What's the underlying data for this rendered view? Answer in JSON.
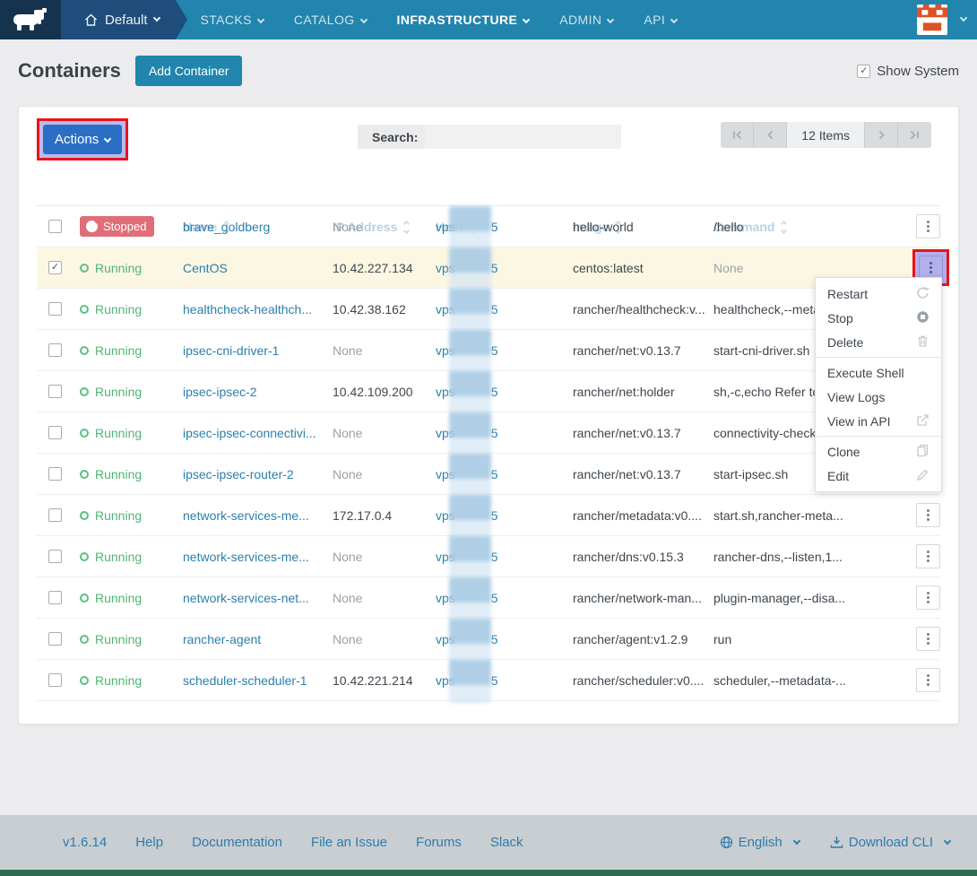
{
  "nav": {
    "environment": {
      "label": "Default"
    },
    "items": [
      {
        "label": "STACKS"
      },
      {
        "label": "CATALOG"
      },
      {
        "label": "INFRASTRUCTURE",
        "active": true
      },
      {
        "label": "ADMIN"
      },
      {
        "label": "API"
      }
    ]
  },
  "page": {
    "title": "Containers",
    "add_button_label": "Add Container",
    "show_system_label": "Show System",
    "show_system_checked": true
  },
  "toolbar": {
    "actions_label": "Actions",
    "search_label": "Search:",
    "search_value": "",
    "pagination": {
      "items_label": "12 Items"
    }
  },
  "table": {
    "columns": [
      {
        "label": "State"
      },
      {
        "label": "Name"
      },
      {
        "label": "IP Address"
      },
      {
        "label": "Host"
      },
      {
        "label": "Image"
      },
      {
        "label": "Command"
      }
    ],
    "host_prefix": "vps",
    "host_suffix": "5",
    "rows": [
      {
        "state": "Stopped",
        "state_type": "stopped",
        "checked": false,
        "name": "brave_goldberg",
        "ip": "None",
        "image": "hello-world",
        "command": "/hello"
      },
      {
        "state": "Running",
        "state_type": "running",
        "checked": true,
        "selected": true,
        "menu_highlight": true,
        "name": "CentOS",
        "ip": "10.42.227.134",
        "image": "centos:latest",
        "command": "None"
      },
      {
        "state": "Running",
        "state_type": "running",
        "checked": false,
        "name": "healthcheck-healthch...",
        "ip": "10.42.38.162",
        "image": "rancher/healthcheck:v...",
        "command": "healthcheck,--meta"
      },
      {
        "state": "Running",
        "state_type": "running",
        "checked": false,
        "name": "ipsec-cni-driver-1",
        "ip": "None",
        "image": "rancher/net:v0.13.7",
        "command": "start-cni-driver.sh"
      },
      {
        "state": "Running",
        "state_type": "running",
        "checked": false,
        "name": "ipsec-ipsec-2",
        "ip": "10.42.109.200",
        "image": "rancher/net:holder",
        "command": "sh,-c,echo Refer to"
      },
      {
        "state": "Running",
        "state_type": "running",
        "checked": false,
        "name": "ipsec-ipsec-connectivi...",
        "ip": "None",
        "image": "rancher/net:v0.13.7",
        "command": "connectivity-check"
      },
      {
        "state": "Running",
        "state_type": "running",
        "checked": false,
        "name": "ipsec-ipsec-router-2",
        "ip": "None",
        "image": "rancher/net:v0.13.7",
        "command": "start-ipsec.sh"
      },
      {
        "state": "Running",
        "state_type": "running",
        "checked": false,
        "name": "network-services-me...",
        "ip": "172.17.0.4",
        "image": "rancher/metadata:v0....",
        "command": "start.sh,rancher-meta..."
      },
      {
        "state": "Running",
        "state_type": "running",
        "checked": false,
        "name": "network-services-me...",
        "ip": "None",
        "image": "rancher/dns:v0.15.3",
        "command": "rancher-dns,--listen,1..."
      },
      {
        "state": "Running",
        "state_type": "running",
        "checked": false,
        "name": "network-services-net...",
        "ip": "None",
        "image": "rancher/network-man...",
        "command": "plugin-manager,--disa..."
      },
      {
        "state": "Running",
        "state_type": "running",
        "checked": false,
        "name": "rancher-agent",
        "ip": "None",
        "image": "rancher/agent:v1.2.9",
        "command": "run"
      },
      {
        "state": "Running",
        "state_type": "running",
        "checked": false,
        "name": "scheduler-scheduler-1",
        "ip": "10.42.221.214",
        "image": "rancher/scheduler:v0....",
        "command": "scheduler,--metadata-..."
      }
    ]
  },
  "context_menu": {
    "items": [
      {
        "label": "Restart",
        "icon": "restart-icon"
      },
      {
        "label": "Stop",
        "icon": "stop-icon"
      },
      {
        "label": "Delete",
        "icon": "trash-icon",
        "divider_after": true
      },
      {
        "label": "Execute Shell",
        "icon": ""
      },
      {
        "label": "View Logs",
        "icon": ""
      },
      {
        "label": "View in API",
        "icon": "external-link-icon",
        "divider_after": true
      },
      {
        "label": "Clone",
        "icon": "clone-icon"
      },
      {
        "label": "Edit",
        "icon": "edit-icon"
      }
    ]
  },
  "footer": {
    "version": "v1.6.14",
    "links": [
      "Help",
      "Documentation",
      "File an Issue",
      "Forums",
      "Slack"
    ],
    "language_label": "English",
    "download_label": "Download CLI"
  },
  "colors": {
    "nav_bar": "#2185ad",
    "nav_logo_block": "#16334d",
    "nav_env_block": "#1f4d7b",
    "primary_button": "#2185ad",
    "actions_button": "#2a6fc4",
    "annotation_highlight_border": "#e8131a",
    "annotation_highlight_fill": "#bdb9ef",
    "stopped_badge": "#df6e79",
    "running_text": "#4fb573",
    "link_text": "#2b7fab",
    "selected_row_bg": "#fcf7e3",
    "footer_bg": "#c9ced2",
    "bottom_strip": "#2f6b4f",
    "avatar_orange": "#de5226"
  }
}
